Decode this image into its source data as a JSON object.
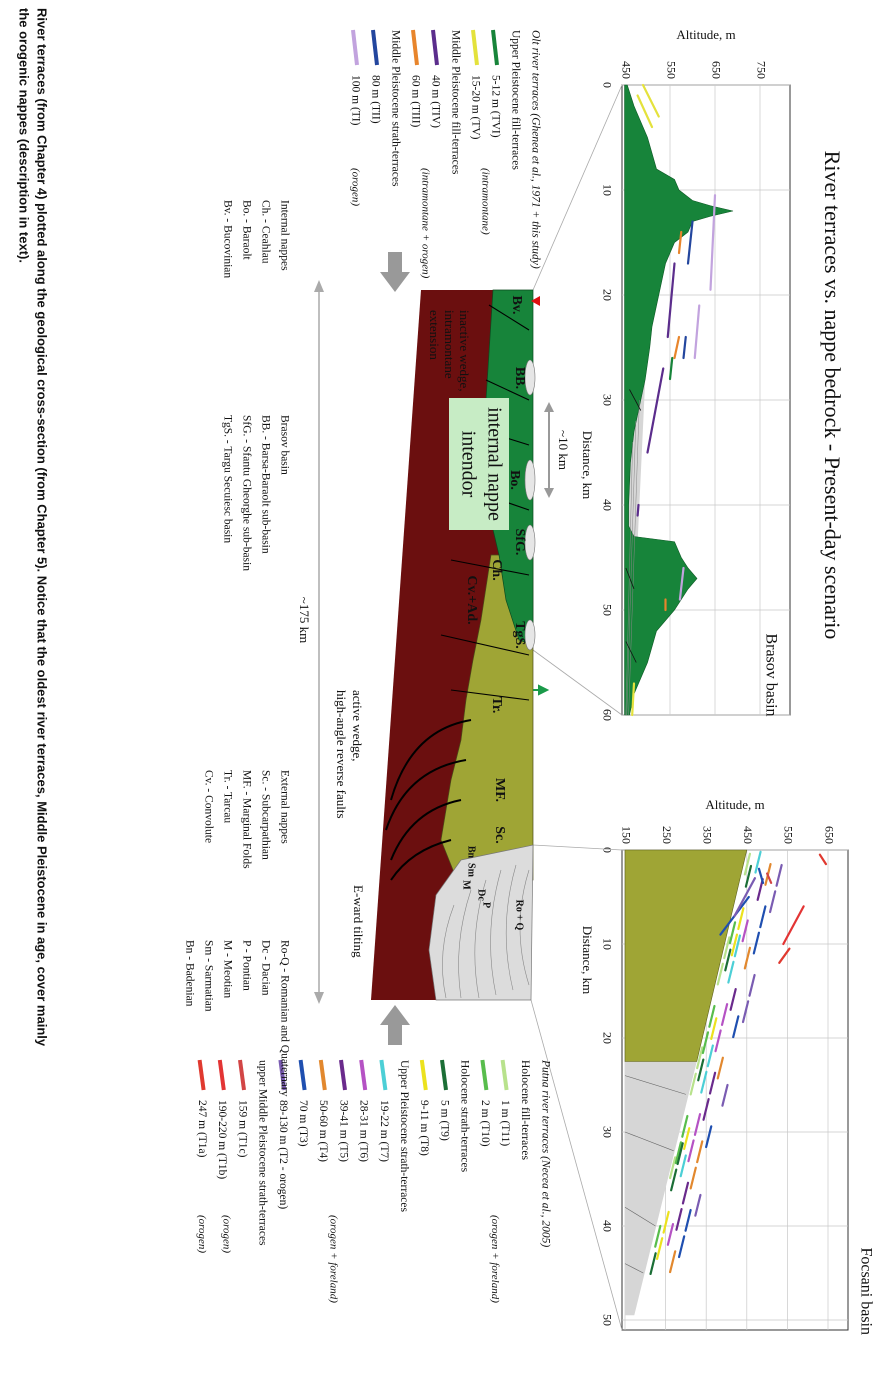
{
  "title": "River terraces vs. nappe bedrock - Present-day scenario",
  "brasov_profile": {
    "basin": "Brasov basin",
    "y_label": "Altitude, m",
    "x_label": "Distance, km",
    "yticks": [
      450,
      550,
      650,
      750
    ],
    "xticks": [
      0,
      10,
      20,
      30,
      40,
      50,
      60
    ]
  },
  "focsani_profile": {
    "basin": "Focsani basin",
    "y_label": "Altitude, m",
    "x_label": "Distance, km",
    "yticks": [
      150,
      250,
      350,
      450,
      550,
      650
    ],
    "xticks": [
      0,
      10,
      20,
      30,
      40,
      50
    ]
  },
  "cross_section": {
    "units": [
      "Bv.",
      "BB.",
      "Bo.",
      "SfG.",
      "Ch.",
      "TgS.",
      "Cv.+Ad.",
      "Tr.",
      "MF.",
      "Sc.",
      "Bn",
      "Sm",
      "M",
      "Dc",
      "P",
      "Ro + Q"
    ],
    "box": [
      "internal nappe",
      "intendor"
    ],
    "scale": "~10 km",
    "length": "~175 km",
    "inactive": [
      "inactive wedge,",
      "intramontane",
      "extension"
    ],
    "active": [
      "active wedge,",
      "high-angle reverse faults"
    ],
    "tilting": "E-ward tilting"
  },
  "olt_legend": {
    "heading": "Olt river terraces (Ghenea et al., 1971 + this study)",
    "rows": [
      {
        "group": "Upper Pleistocene fill-terraces"
      },
      {
        "label": "5-12 m (TVI)",
        "color": "#17843a"
      },
      {
        "label": "15-20 m (TV)",
        "color": "#e4e23c"
      },
      {
        "group": "Middle Pleistocene fill-terraces"
      },
      {
        "label": "40 m (TIV)",
        "color": "#5b2d8c"
      },
      {
        "label": "60 m (TIII)",
        "color": "#e8852c"
      },
      {
        "group": "Middle Pleistocene strath-terraces"
      },
      {
        "label": "80 m (TII)",
        "color": "#23469e"
      },
      {
        "label": "100 m (TI)",
        "color": "#c2a3de"
      }
    ],
    "notes": [
      "(intramontane)",
      "(intramontane + orogen)",
      "(orogen)"
    ]
  },
  "putna_legend": {
    "heading": "Putna river terraces (Necea et al., 2005)",
    "rows": [
      {
        "group": "Holocene fill-terraces"
      },
      {
        "label": "1 m (T11)",
        "color": "#b8e28c"
      },
      {
        "label": "2 m (T10)",
        "color": "#58bd4c"
      },
      {
        "group": "Holocene strath-terraces"
      },
      {
        "label": "5 m (T9)",
        "color": "#1b6e36"
      },
      {
        "label": "9-11 m (T8)",
        "color": "#ece21e"
      },
      {
        "group": "Upper Pleistocene strath-terraces"
      },
      {
        "label": "19-22 m (T7)",
        "color": "#4ccfd6"
      },
      {
        "label": "28-31 m (T6)",
        "color": "#b552c4"
      },
      {
        "label": "39-41 m (T5)",
        "color": "#6a2a8c"
      },
      {
        "label": "50-60 m (T4)",
        "color": "#e2882e"
      },
      {
        "label": "70 m (T3)",
        "color": "#1f4fb0"
      },
      {
        "label": "89-130 m (T2 - orogen)",
        "color": "#7a5cb2"
      },
      {
        "group": "upper Middle Pleistocene strath-terraces"
      },
      {
        "label": "159 m (T1c)",
        "color": "#d24545"
      },
      {
        "label": "190-220 m (T1b)",
        "color": "#e33434"
      },
      {
        "label": "247 m (T1a)",
        "color": "#e0392f"
      }
    ],
    "notes": [
      "(orogen + foreland)",
      "(orogen + foreland)",
      "(orogen)",
      "(orogen)"
    ]
  },
  "glossary": {
    "internal": [
      "Internal nappes",
      "Ch. - Ceahlau",
      "Bo. - Baraolt",
      "Bv. - Bucovinian"
    ],
    "brasov": [
      "Brasov basin",
      "BB. - Barsa-Baraolt sub-basin",
      "SfG. - Sfantu Gheorghe sub-basin",
      "TgS. - Targu Secuiesc basin"
    ],
    "external": [
      "External nappes",
      "Sc. - Subcarpathian",
      "MF. - Marginal Folds",
      "Tr. - Tarcau",
      "Cv. - Convolute"
    ],
    "neogene": [
      "Ro-Q - Romanian and Quaternary",
      "Dc - Dacian",
      "P - Pontian",
      "M - Meotian",
      "Sm - Sarmatian",
      "Bn - Badenian"
    ]
  },
  "caption": [
    "River terraces (from Chapter 4) plotted along the geological cross-section (from Chapter 5). Notice that the oldest river terraces, Middle Pleistocene in age, cover mainly",
    "the orogenic nappes (description in text)."
  ]
}
